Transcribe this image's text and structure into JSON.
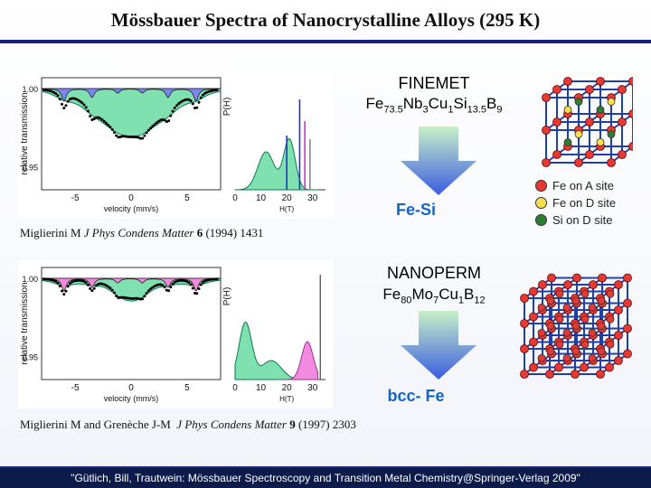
{
  "title": "Mössbauer Spectra of Nanocrystalline Alloys (295 K)",
  "colors": {
    "accent": "#1a237e",
    "phase_text": "#1565c0",
    "fe_atom": "#e53935",
    "si_atom": "#2e7d32",
    "d_atom": "#f9e04a",
    "bond": "#1e3fa8"
  },
  "finemet": {
    "name": "FINEMET",
    "formula": [
      [
        "Fe",
        "73.5"
      ],
      [
        "Nb",
        "3"
      ],
      [
        "Cu",
        "1"
      ],
      [
        "Si",
        "13.5"
      ],
      [
        "B",
        "9"
      ]
    ],
    "phase": "Fe-Si",
    "reference": {
      "authors": "Miglierini M",
      "journal": "J Phys Condens Matter",
      "volume": "6",
      "year_pages": "(1994) 1431"
    },
    "spectrum": {
      "ylabel": "relative transmission",
      "yticks": [
        "1.00",
        "0.95"
      ],
      "xlabel": "velocity (mm/s)",
      "xticks": [
        "-5",
        "0",
        "5"
      ],
      "dist_label": "P(H)",
      "dist_ticks": [
        "0",
        "10",
        "20",
        "30"
      ],
      "dist_unit": "H(T)"
    }
  },
  "nanoperm": {
    "name": "NANOPERM",
    "formula": [
      [
        "Fe",
        "80"
      ],
      [
        "Mo",
        "7"
      ],
      [
        "Cu",
        "1"
      ],
      [
        "B",
        "12"
      ]
    ],
    "phase": "bcc- Fe",
    "reference": {
      "authors": "Miglierini M and Grenèche J-M",
      "journal": "J Phys Condens Matter",
      "volume": "9",
      "year_pages": "(1997) 2303"
    },
    "spectrum": {
      "ylabel": "relative transmission",
      "yticks": [
        "1.00",
        "0.95"
      ],
      "xlabel": "velocity (mm/s)",
      "xticks": [
        "-5",
        "0",
        "5"
      ],
      "dist_label": "P(H)",
      "dist_ticks": [
        "0",
        "10",
        "20",
        "30"
      ],
      "dist_unit": "H(T)"
    }
  },
  "legend": [
    {
      "label": "Fe on A site",
      "color": "#e53935"
    },
    {
      "label": "Fe on D site",
      "color": "#f9e04a"
    },
    {
      "label": "Si on D site",
      "color": "#2e7d32"
    }
  ],
  "footer": "\"Gütlich, Bill, Trautwein: Mössbauer Spectroscopy and Transition Metal Chemistry@Springer-Verlag 2009\""
}
